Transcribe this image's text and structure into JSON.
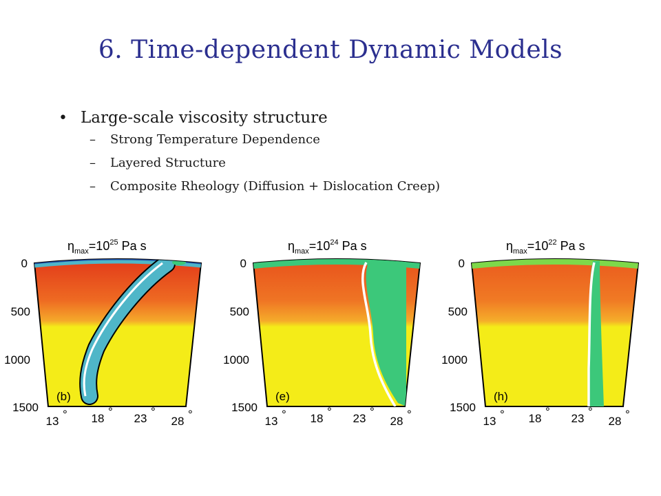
{
  "slide": {
    "title": "6. Time-dependent Dynamic Models",
    "bullet": "Large-scale viscosity structure",
    "sub_items": [
      "Strong Temperature Dependence",
      "Layered Structure",
      "Composite Rheology (Diffusion + Dislocation Creep)"
    ]
  },
  "panels": [
    {
      "label": "(b)",
      "eta_exp": "25"
    },
    {
      "label": "(e)",
      "eta_exp": "24"
    },
    {
      "label": "(h)",
      "eta_exp": "22"
    }
  ],
  "axes": {
    "depth_ticks": [
      "0",
      "500",
      "1000",
      "1500"
    ],
    "lon_ticks": [
      "13",
      "18",
      "23",
      "28"
    ],
    "degree_symbol": "°",
    "eta_symbol": "η",
    "eta_sub": "max",
    "eta_base": "=10",
    "eta_unit": " Pa s"
  },
  "colors": {
    "title": "#2b2f8f",
    "hot_red": "#e23a1a",
    "orange": "#f08a20",
    "yellow": "#f4ec18",
    "slab_green": "#3cc87a",
    "slab_cyan": "#4fb6c8",
    "slab_blue": "#1f4fa8"
  }
}
